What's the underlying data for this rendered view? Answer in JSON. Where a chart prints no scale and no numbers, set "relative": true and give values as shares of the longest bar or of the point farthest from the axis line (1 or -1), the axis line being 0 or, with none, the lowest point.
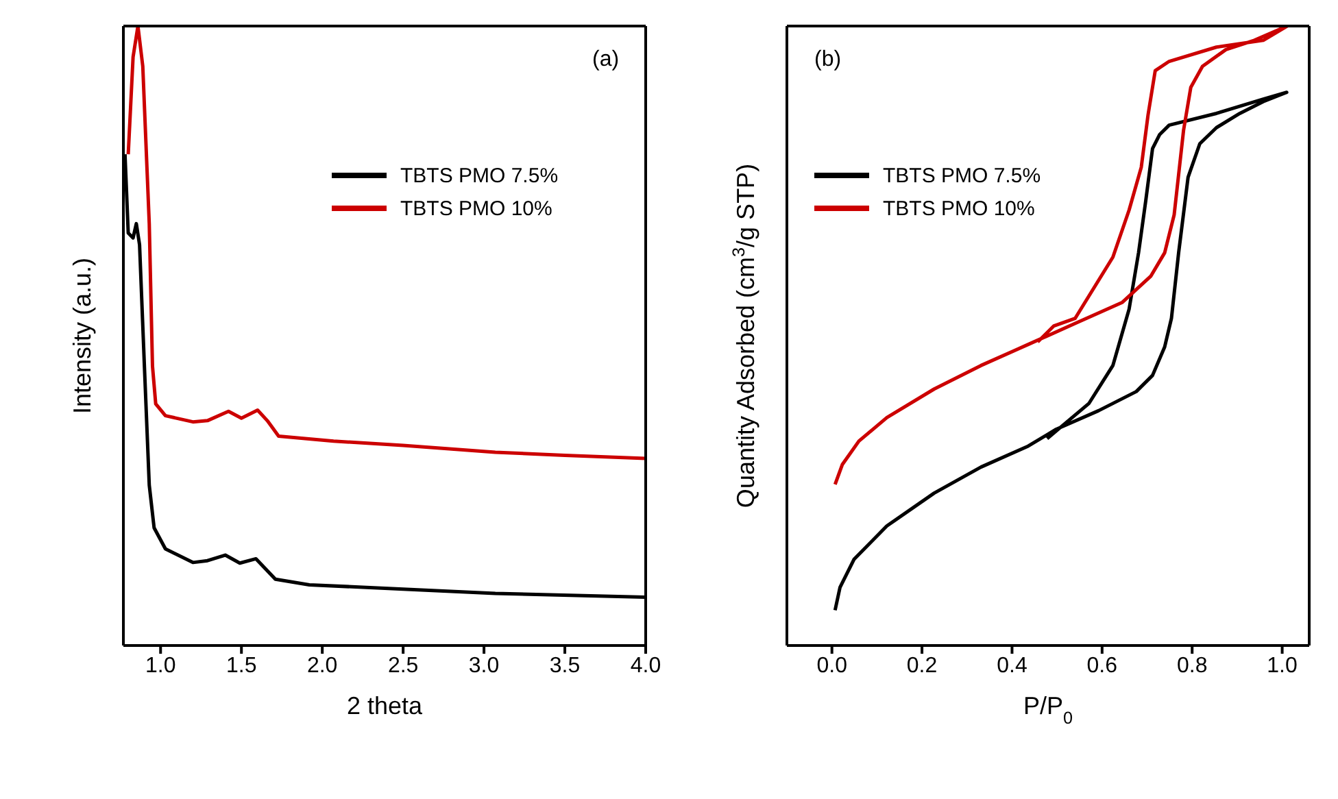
{
  "chart_data": [
    {
      "type": "line",
      "relative": true,
      "xlabel": "2 theta",
      "ylabel": "Intensity (a.u.)",
      "annotations": [
        "(a)"
      ],
      "xlim": [
        0.77,
        4.0
      ],
      "xticks": [
        {
          "value": 1,
          "label": "1.0"
        },
        {
          "value": 1.5,
          "label": "1.5"
        },
        {
          "value": 2,
          "label": "2.0"
        },
        {
          "value": 2.5,
          "label": "2.5"
        },
        {
          "value": 3,
          "label": "3.0"
        },
        {
          "value": 3.5,
          "label": "3.5"
        },
        {
          "value": 4,
          "label": "4.0"
        }
      ],
      "tick_labels": "x",
      "legend": "top right",
      "marker": "none",
      "line_style": "solid",
      "series": [
        {
          "name": "TBTS PMO 7.5%",
          "color": "#000000",
          "x": [
            0.78,
            0.8,
            0.83,
            0.85,
            0.87,
            0.9,
            0.93,
            0.96,
            1.03,
            1.2,
            1.29,
            1.4,
            1.49,
            1.59,
            1.71,
            1.92,
            2.5,
            3.07,
            4.0
          ],
          "values": [
            0.793,
            0.666,
            0.658,
            0.681,
            0.647,
            0.451,
            0.259,
            0.19,
            0.156,
            0.134,
            0.137,
            0.146,
            0.133,
            0.14,
            0.107,
            0.098,
            0.091,
            0.084,
            0.078
          ]
        },
        {
          "name": "TBTS PMO 10%",
          "color": "#cc0000",
          "x": [
            0.8,
            0.83,
            0.86,
            0.89,
            0.93,
            0.95,
            0.97,
            1.03,
            1.2,
            1.29,
            1.42,
            1.5,
            1.6,
            1.66,
            1.73,
            2.07,
            2.5,
            3.07,
            3.5,
            4.0
          ],
          "values": [
            0.793,
            0.95,
            1.0,
            0.935,
            0.681,
            0.451,
            0.39,
            0.371,
            0.361,
            0.363,
            0.378,
            0.367,
            0.38,
            0.363,
            0.338,
            0.33,
            0.323,
            0.312,
            0.307,
            0.302
          ]
        }
      ]
    },
    {
      "type": "line",
      "relative": true,
      "xlabel": "P/P$_{0}$",
      "ylabel": "Quantity Adsorbed (cm$^{3}$/g STP)",
      "annotations": [
        "(b)"
      ],
      "xlim": [
        -0.1,
        1.06
      ],
      "xticks": [
        {
          "value": 0,
          "label": "0.0"
        },
        {
          "value": 0.2,
          "label": "0.2"
        },
        {
          "value": 0.4,
          "label": "0.4"
        },
        {
          "value": 0.6,
          "label": "0.6"
        },
        {
          "value": 0.8,
          "label": "0.8"
        },
        {
          "value": 1,
          "label": "1.0"
        }
      ],
      "tick_labels": "x",
      "legend": "top left",
      "marker": "none",
      "line_style": "solid",
      "series": [
        {
          "name": "TBTS PMO 7.5%",
          "color": "#000000",
          "x": [
            0.007,
            0.018,
            0.049,
            0.122,
            0.227,
            0.331,
            0.436,
            0.498,
            0.592,
            0.676,
            0.712,
            0.739,
            0.754,
            0.77,
            0.791,
            0.817,
            0.854,
            0.906,
            0.958,
            1.01,
            0.958,
            0.854,
            0.749,
            0.728,
            0.712,
            0.697,
            0.681,
            0.66,
            0.624,
            0.571,
            0.509,
            0.478
          ],
          "values": [
            0.057,
            0.094,
            0.139,
            0.193,
            0.246,
            0.288,
            0.322,
            0.349,
            0.379,
            0.41,
            0.436,
            0.482,
            0.528,
            0.634,
            0.756,
            0.81,
            0.836,
            0.859,
            0.878,
            0.893,
            0.882,
            0.859,
            0.84,
            0.825,
            0.802,
            0.718,
            0.634,
            0.543,
            0.452,
            0.391,
            0.353,
            0.334
          ]
        },
        {
          "name": "TBTS PMO 10%",
          "color": "#cc0000",
          "x": [
            0.007,
            0.023,
            0.06,
            0.122,
            0.227,
            0.331,
            0.436,
            0.54,
            0.645,
            0.708,
            0.739,
            0.76,
            0.781,
            0.797,
            0.823,
            0.875,
            0.938,
            1.011,
            0.958,
            0.854,
            0.749,
            0.718,
            0.702,
            0.687,
            0.66,
            0.624,
            0.54,
            0.493,
            0.457
          ],
          "values": [
            0.26,
            0.292,
            0.33,
            0.368,
            0.414,
            0.452,
            0.486,
            0.52,
            0.554,
            0.596,
            0.634,
            0.695,
            0.832,
            0.901,
            0.935,
            0.962,
            0.977,
            1.0,
            0.977,
            0.966,
            0.943,
            0.928,
            0.856,
            0.772,
            0.703,
            0.627,
            0.528,
            0.516,
            0.49
          ]
        }
      ]
    }
  ]
}
